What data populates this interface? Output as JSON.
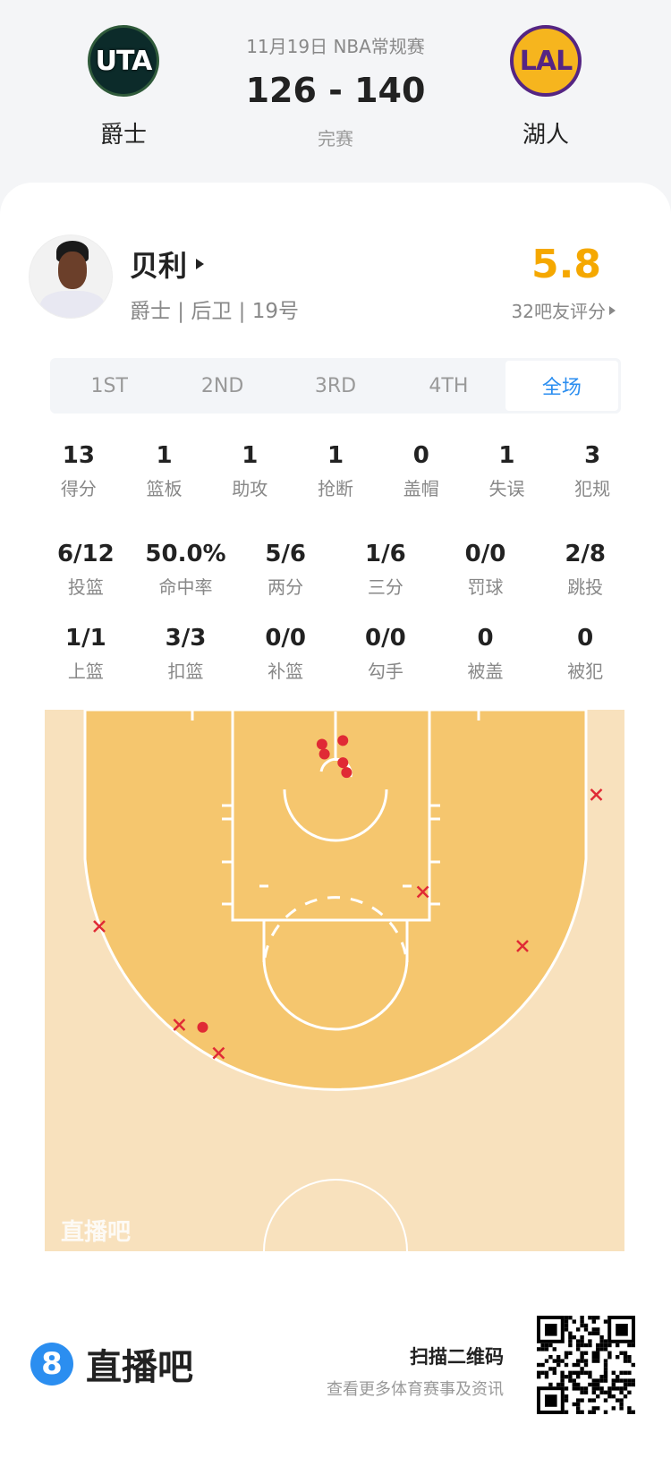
{
  "game": {
    "date_type": "11月19日 NBA常规赛",
    "score": "126 - 140",
    "status": "完赛",
    "home": {
      "abbr": "UTA",
      "name": "爵士"
    },
    "away": {
      "abbr": "LAL",
      "name": "湖人"
    }
  },
  "player": {
    "name": "贝利",
    "info": "爵士 | 后卫 | 19号",
    "rating": "5.8",
    "rating_label": "32吧友评分"
  },
  "tabs": [
    {
      "label": "1ST"
    },
    {
      "label": "2ND"
    },
    {
      "label": "3RD"
    },
    {
      "label": "4TH"
    },
    {
      "label": "全场",
      "selected": true
    }
  ],
  "stats": [
    [
      {
        "v": "13",
        "l": "得分"
      },
      {
        "v": "1",
        "l": "篮板"
      },
      {
        "v": "1",
        "l": "助攻"
      },
      {
        "v": "1",
        "l": "抢断"
      },
      {
        "v": "0",
        "l": "盖帽"
      },
      {
        "v": "1",
        "l": "失误"
      },
      {
        "v": "3",
        "l": "犯规"
      }
    ],
    [
      {
        "v": "6/12",
        "l": "投篮"
      },
      {
        "v": "50.0%",
        "l": "命中率"
      },
      {
        "v": "5/6",
        "l": "两分"
      },
      {
        "v": "1/6",
        "l": "三分"
      },
      {
        "v": "0/0",
        "l": "罚球"
      },
      {
        "v": "2/8",
        "l": "跳投"
      }
    ],
    [
      {
        "v": "1/1",
        "l": "上篮"
      },
      {
        "v": "3/3",
        "l": "扣篮"
      },
      {
        "v": "0/0",
        "l": "补篮"
      },
      {
        "v": "0/0",
        "l": "勾手"
      },
      {
        "v": "0",
        "l": "被盖"
      },
      {
        "v": "0",
        "l": "被犯"
      }
    ]
  ],
  "shot_chart": {
    "units": "feet from basket (x lateral, y from baseline)",
    "watermark": "直播吧",
    "made_color": "#e02a35",
    "miss_color": "#e02a35",
    "shots": [
      {
        "x": -1.1,
        "y": 2.8,
        "made": true
      },
      {
        "x": 0.6,
        "y": 2.5,
        "made": true
      },
      {
        "x": -0.9,
        "y": 3.6,
        "made": true
      },
      {
        "x": 0.6,
        "y": 4.3,
        "made": true
      },
      {
        "x": 0.9,
        "y": 5.1,
        "made": true
      },
      {
        "x": -10.8,
        "y": 25.8,
        "made": true
      },
      {
        "x": 21.2,
        "y": 6.9,
        "made": false
      },
      {
        "x": 7.1,
        "y": 14.8,
        "made": false
      },
      {
        "x": -19.2,
        "y": 17.6,
        "made": false
      },
      {
        "x": 15.2,
        "y": 19.2,
        "made": false
      },
      {
        "x": -12.7,
        "y": 25.6,
        "made": false
      },
      {
        "x": -9.5,
        "y": 27.9,
        "made": false
      }
    ]
  },
  "footer": {
    "brand": "直播吧",
    "brand_icon": "8",
    "qr_title": "扫描二维码",
    "qr_sub": "查看更多体育赛事及资讯"
  },
  "colors": {
    "accent": "#2b8ef0",
    "rating": "#f5a800",
    "court_inner": "#f5c66e",
    "court_outer": "#f8e1bd"
  }
}
